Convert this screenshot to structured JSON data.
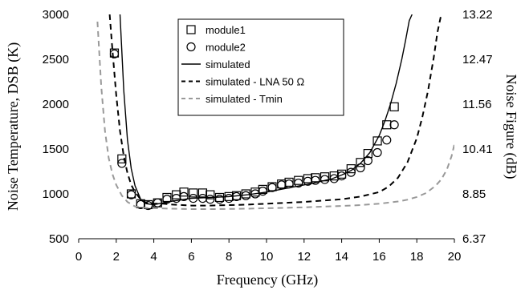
{
  "chart_data": {
    "type": "scatter",
    "xlabel": "Frequency (GHz)",
    "ylabel": "Noise Temperature, DSB (K)",
    "y2label": "Noise Figure (dB)",
    "xlim": [
      0,
      20
    ],
    "ylim": [
      500,
      3000
    ],
    "x_ticks": [
      "0",
      "2",
      "4",
      "6",
      "8",
      "10",
      "12",
      "14",
      "16",
      "18",
      "20"
    ],
    "y_ticks": [
      "500",
      "1000",
      "1500",
      "2000",
      "2500",
      "3000"
    ],
    "y2_ticks": [
      "6.37",
      "8.85",
      "10.41",
      "11.56",
      "12.47",
      "13.22"
    ],
    "grid": false,
    "legend_position": "top-center",
    "series": [
      {
        "name": "module1",
        "style": "open-square",
        "color": "#000000",
        "x": [
          1.9,
          2.3,
          2.8,
          3.3,
          3.7,
          4.2,
          4.7,
          5.2,
          5.6,
          6.1,
          6.6,
          7.0,
          7.5,
          8.0,
          8.4,
          8.9,
          9.4,
          9.8,
          10.3,
          10.8,
          11.2,
          11.7,
          12.2,
          12.6,
          13.1,
          13.6,
          14.0,
          14.5,
          15.0,
          15.4,
          15.9,
          16.4,
          16.8
        ],
        "y": [
          2570,
          1390,
          1000,
          890,
          880,
          900,
          960,
          990,
          1020,
          1010,
          1010,
          990,
          960,
          970,
          980,
          1000,
          1020,
          1050,
          1080,
          1110,
          1130,
          1150,
          1170,
          1180,
          1190,
          1200,
          1220,
          1280,
          1350,
          1450,
          1590,
          1770,
          1970
        ]
      },
      {
        "name": "module2",
        "style": "open-circle",
        "color": "#000000",
        "x": [
          1.9,
          2.3,
          2.8,
          3.3,
          3.7,
          4.2,
          4.7,
          5.2,
          5.6,
          6.1,
          6.6,
          7.0,
          7.5,
          8.0,
          8.4,
          8.9,
          9.4,
          9.8,
          10.3,
          10.8,
          11.2,
          11.7,
          12.2,
          12.6,
          13.1,
          13.6,
          14.0,
          14.5,
          15.0,
          15.4,
          15.9,
          16.4,
          16.8
        ],
        "y": [
          2560,
          1340,
          990,
          880,
          870,
          900,
          940,
          950,
          970,
          950,
          950,
          940,
          940,
          950,
          970,
          980,
          1000,
          1030,
          1070,
          1100,
          1110,
          1120,
          1140,
          1150,
          1160,
          1170,
          1200,
          1240,
          1290,
          1370,
          1460,
          1600,
          1770
        ]
      },
      {
        "name": "simulated",
        "style": "solid",
        "color": "#000000",
        "x": [
          2.2,
          2.4,
          2.6,
          2.8,
          3.0,
          3.3,
          3.6,
          4.0,
          4.5,
          5.0,
          6.0,
          7.0,
          8.0,
          9.0,
          10.0,
          11.0,
          12.0,
          12.5,
          13.0,
          13.5,
          14.0,
          14.5,
          15.0,
          15.5,
          16.0,
          16.3,
          16.6,
          16.9,
          17.2,
          17.4,
          17.6,
          17.75
        ],
        "y": [
          3000,
          2150,
          1600,
          1280,
          1090,
          940,
          890,
          880,
          900,
          920,
          950,
          960,
          970,
          990,
          1020,
          1060,
          1100,
          1120,
          1145,
          1170,
          1210,
          1260,
          1340,
          1460,
          1650,
          1810,
          2000,
          2230,
          2500,
          2710,
          2930,
          3000
        ]
      },
      {
        "name": "simulated - LNA 50 Ω",
        "style": "dashed",
        "color": "#000000",
        "x": [
          1.65,
          1.8,
          2.0,
          2.2,
          2.4,
          2.6,
          2.8,
          3.0,
          3.3,
          3.6,
          4.0,
          4.5,
          5.0,
          6.0,
          7.0,
          8.0,
          9.0,
          10.0,
          11.0,
          12.0,
          13.0,
          14.0,
          15.0,
          16.0,
          16.5,
          17.0,
          17.5,
          18.0,
          18.3,
          18.6,
          18.9,
          19.1,
          19.3
        ],
        "y": [
          3000,
          2600,
          2100,
          1700,
          1420,
          1230,
          1100,
          1020,
          940,
          900,
          890,
          890,
          880,
          870,
          870,
          875,
          880,
          890,
          900,
          910,
          925,
          940,
          970,
          1020,
          1080,
          1180,
          1350,
          1620,
          1860,
          2150,
          2520,
          2800,
          3000
        ]
      },
      {
        "name": "simulated - Tmin",
        "style": "dashed",
        "color": "#999999",
        "x": [
          1.0,
          1.2,
          1.4,
          1.6,
          1.8,
          2.0,
          2.3,
          2.6,
          3.0,
          3.5,
          4.0,
          5.0,
          6.0,
          7.0,
          8.0,
          9.0,
          10.0,
          11.0,
          12.0,
          13.0,
          14.0,
          15.0,
          16.0,
          17.0,
          17.5,
          18.0,
          18.5,
          19.0,
          19.3,
          19.6,
          19.85,
          20.0
        ],
        "y": [
          2920,
          2200,
          1700,
          1400,
          1220,
          1100,
          980,
          910,
          860,
          845,
          840,
          835,
          830,
          830,
          832,
          835,
          840,
          845,
          850,
          858,
          865,
          875,
          890,
          915,
          935,
          965,
          1010,
          1090,
          1160,
          1270,
          1420,
          1550
        ]
      }
    ]
  }
}
